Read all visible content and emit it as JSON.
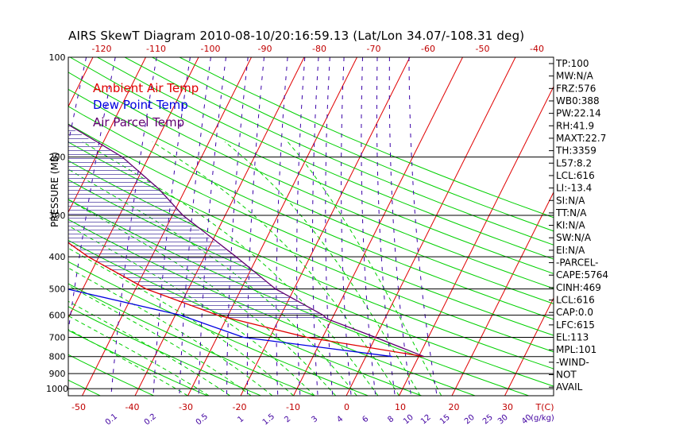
{
  "colors": {
    "ambient": "#e00000",
    "dewpoint": "#0000e0",
    "parcel": "#600070",
    "isotherm": "#e00000",
    "dry_adiabat": "#00d000",
    "moist_adiabat": "#00d000",
    "mixing_ratio": "#3a00a8",
    "axis_text": "#c00000",
    "mixing_text": "#4000a0",
    "frame": "#000000"
  },
  "chart_data": {
    "type": "line",
    "title": "AIRS SkewT Diagram 2010-08-10/20:16:59.13 (Lat/Lon 34.07/-108.31 deg)",
    "ylabel": "PRESSURE (MB)",
    "xlabel": "T(C)",
    "legend": [
      "Ambient Air Temp",
      "Dew Point Temp",
      "Air Parcel Temp"
    ],
    "legend_placement": "top-left",
    "y_scale": "log",
    "pressure_ticks": [
      100,
      200,
      300,
      400,
      500,
      600,
      700,
      800,
      900,
      1000
    ],
    "bottom_temp_ticks": [
      -50,
      -40,
      -30,
      -20,
      -10,
      0,
      10,
      20,
      30
    ],
    "top_temp_ticks": [
      -120,
      -110,
      -100,
      -90,
      -80,
      -70,
      -60,
      -50,
      -40
    ],
    "mixing_ratio_ticks": [
      "0.1",
      "0.2",
      "0.5",
      "1",
      "1.5",
      "2",
      "3",
      "4",
      "6",
      "8",
      "10",
      "12",
      "15",
      "20",
      "25",
      "30",
      "40"
    ],
    "mixing_ratio_unit": "(g/kg)",
    "series": [
      {
        "name": "Ambient Air Temp",
        "p": [
          100,
          110,
          120,
          150,
          200,
          250,
          300,
          400,
          500,
          600,
          700,
          800
        ],
        "t": [
          -73,
          -73.6,
          -74.4,
          -75.7,
          -71,
          -63,
          -57,
          -42,
          -28,
          -12,
          7,
          31
        ]
      },
      {
        "name": "Dew Point Temp",
        "p": [
          100,
          150,
          200,
          250,
          300,
          400,
          500,
          600,
          700,
          800
        ],
        "t": [
          -93,
          -100,
          -100,
          -95,
          -88,
          -67,
          -43,
          -19,
          -5,
          25
        ]
      },
      {
        "name": "Air Parcel Temp",
        "p": [
          100,
          120,
          150,
          200,
          250,
          300,
          400,
          500,
          600,
          615,
          700,
          800
        ],
        "t": [
          -73,
          -71,
          -62,
          -45,
          -35,
          -28,
          -14,
          -3.5,
          8,
          9,
          20,
          31
        ]
      }
    ],
    "annotations": [
      "TP:100",
      "MW:N/A",
      "FRZ:576",
      "WB0:388",
      "PW:22.14",
      "RH:41.9",
      "MAXT:22.7",
      "TH:3359",
      "L57:8.2",
      "LCL:616",
      "LI:-13.4",
      "SI:N/A",
      "TT:N/A",
      "KI:N/A",
      "SW:N/A",
      "EI:N/A",
      "-PARCEL-",
      "CAPE:5764",
      "CINH:469",
      "LCL:616",
      "CAP:0.0",
      "LFC:615",
      "EL:113",
      "MPL:101",
      "-WIND-",
      "NOT",
      "AVAIL"
    ]
  }
}
